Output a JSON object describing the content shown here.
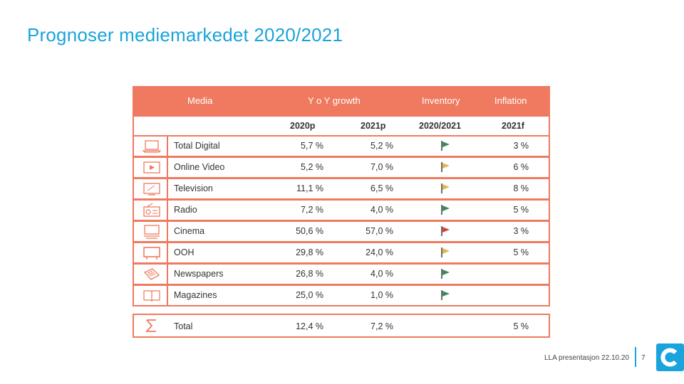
{
  "slide": {
    "title": "Prognoser mediemarkedet 2020/2021",
    "footer_text": "LLA presentasjon 22.10.20",
    "page_number": "7"
  },
  "table": {
    "headers": {
      "media": "Media",
      "growth": "Y o Y growth",
      "inventory": "Inventory",
      "inflation": "Inflation"
    },
    "subheaders": {
      "y2020": "2020p",
      "y2021": "2021p",
      "inventory_period": "2020/2021",
      "inflation_year": "2021f"
    },
    "rows": [
      {
        "icon": "laptop-icon",
        "name": "Total Digital",
        "g2020": "5,7 %",
        "g2021": "5,2 %",
        "inventory_flag": "green",
        "inflation": "3 %"
      },
      {
        "icon": "play-video-icon",
        "name": "Online Video",
        "g2020": "5,2 %",
        "g2021": "7,0 %",
        "inventory_flag": "yellow",
        "inflation": "6 %"
      },
      {
        "icon": "television-icon",
        "name": "Television",
        "g2020": "11,1 %",
        "g2021": "6,5 %",
        "inventory_flag": "yellow",
        "inflation": "8 %"
      },
      {
        "icon": "radio-icon",
        "name": "Radio",
        "g2020": "7,2 %",
        "g2021": "4,0 %",
        "inventory_flag": "green",
        "inflation": "5 %"
      },
      {
        "icon": "cinema-screen-icon",
        "name": "Cinema",
        "g2020": "50,6 %",
        "g2021": "57,0 %",
        "inventory_flag": "red",
        "inflation": "3 %"
      },
      {
        "icon": "billboard-icon",
        "name": "OOH",
        "g2020": "29,8 %",
        "g2021": "24,0 %",
        "inventory_flag": "yellow",
        "inflation": "5 %"
      },
      {
        "icon": "newspaper-icon",
        "name": "Newspapers",
        "g2020": "26,8 %",
        "g2021": "4,0 %",
        "inventory_flag": "green",
        "inflation": ""
      },
      {
        "icon": "open-book-icon",
        "name": "Magazines",
        "g2020": "25,0 %",
        "g2021": "1,0 %",
        "inventory_flag": "green",
        "inflation": ""
      }
    ],
    "total": {
      "icon": "sigma-icon",
      "name": "Total",
      "g2020": "12,4 %",
      "g2021": "7,2 %",
      "inflation": "5 %"
    }
  },
  "colors": {
    "accent_title": "#1aa3dc",
    "table_orange": "#ef7a5f",
    "flag_green": "#3a8a5a",
    "flag_yellow": "#e0b84a",
    "flag_red": "#d9443a"
  }
}
